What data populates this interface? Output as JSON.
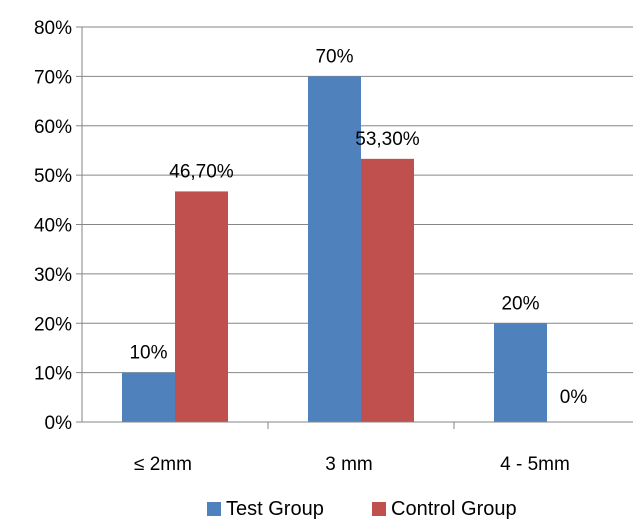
{
  "chart_data": {
    "type": "bar",
    "categories": [
      "≤ 2mm",
      "3 mm",
      "4 - 5mm"
    ],
    "series": [
      {
        "name": "Test Group",
        "color": "#4f81bd",
        "values": [
          10,
          70,
          20
        ],
        "labels": [
          "10%",
          "70%",
          "20%"
        ]
      },
      {
        "name": "Control Group",
        "color": "#c0504d",
        "values": [
          46.7,
          53.3,
          0
        ],
        "labels": [
          "46,70%",
          "53,30%",
          "0%"
        ]
      }
    ],
    "ylim": [
      0,
      80
    ],
    "yticks": [
      0,
      10,
      20,
      30,
      40,
      50,
      60,
      70,
      80
    ],
    "ytick_labels": [
      "0%",
      "10%",
      "20%",
      "30%",
      "40%",
      "50%",
      "60%",
      "70%",
      "80%"
    ],
    "grid": "horizontal",
    "legend": "bottom-center"
  }
}
